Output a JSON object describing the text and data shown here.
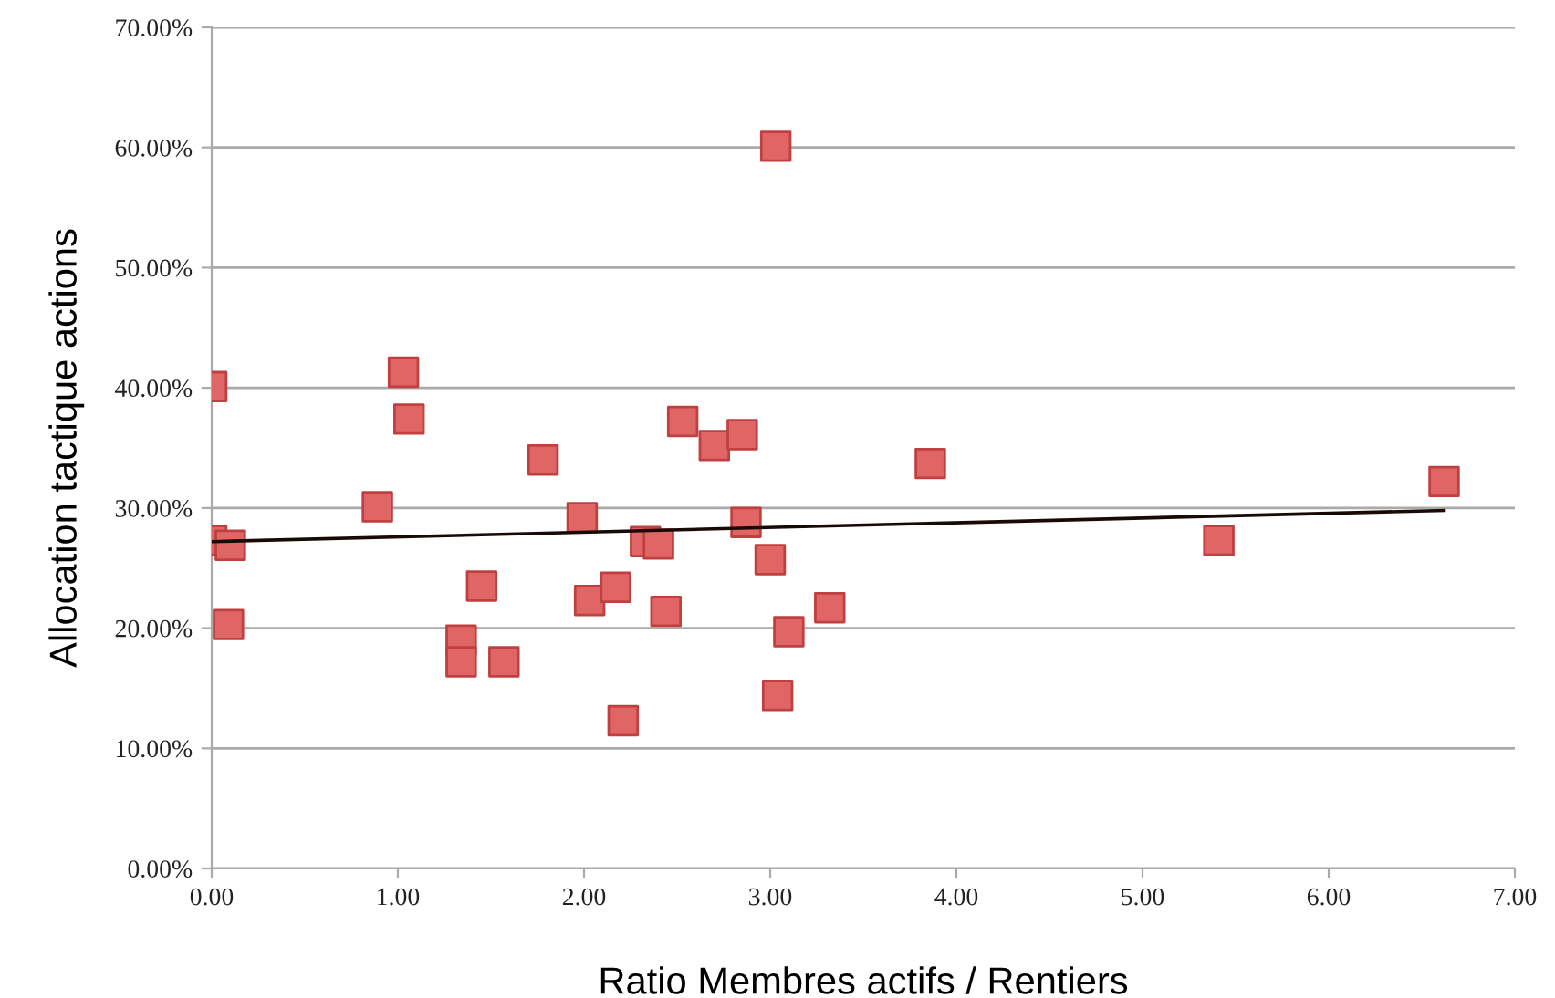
{
  "chart_data": {
    "type": "scatter",
    "xlabel": "Ratio Membres actifs / Rentiers",
    "ylabel": "Allocation tactique actions",
    "xlim": [
      0,
      7
    ],
    "xticks": [
      {
        "value": 0,
        "label": "0.00"
      },
      {
        "value": 1,
        "label": "1.00"
      },
      {
        "value": 2,
        "label": "2.00"
      },
      {
        "value": 3,
        "label": "3.00"
      },
      {
        "value": 4,
        "label": "4.00"
      },
      {
        "value": 5,
        "label": "5.00"
      },
      {
        "value": 6,
        "label": "6.00"
      },
      {
        "value": 7,
        "label": "7.00"
      }
    ],
    "ylim": [
      0,
      70
    ],
    "yticks": [
      {
        "value": 0,
        "label": "0.00%"
      },
      {
        "value": 10,
        "label": "10.00%"
      },
      {
        "value": 20,
        "label": "20.00%"
      },
      {
        "value": 30,
        "label": "30.00%"
      },
      {
        "value": 40,
        "label": "40.00%"
      },
      {
        "value": 50,
        "label": "50.00%"
      },
      {
        "value": 60,
        "label": "60.00%"
      },
      {
        "value": 70,
        "label": "70.00%"
      }
    ],
    "grid": "y",
    "legend": false,
    "series": [
      {
        "color": "#e06666",
        "marker": "square",
        "x": [
          0.0,
          0.0,
          0.1,
          0.09,
          1.03,
          1.06,
          1.78,
          0.89,
          1.99,
          1.45,
          2.03,
          2.17,
          1.34,
          1.34,
          1.57,
          2.21,
          2.53,
          2.7,
          2.85,
          3.86,
          2.87,
          2.33,
          2.4,
          3.0,
          2.44,
          3.32,
          3.1,
          3.04,
          3.03,
          5.41,
          6.62
        ],
        "values": [
          40.1,
          27.3,
          26.9,
          20.3,
          41.3,
          37.4,
          34.0,
          30.1,
          29.2,
          23.5,
          22.3,
          23.4,
          19.0,
          17.2,
          17.2,
          12.3,
          37.2,
          35.2,
          36.1,
          33.7,
          28.8,
          27.2,
          27.0,
          25.7,
          21.4,
          21.7,
          19.7,
          14.4,
          60.1,
          27.3,
          32.2
        ]
      },
      {
        "type": "line",
        "color": "#1a0a05",
        "marker": "none",
        "line_style": "solid",
        "x": [
          0,
          6.62
        ],
        "values": [
          27.2,
          29.8
        ]
      }
    ]
  }
}
